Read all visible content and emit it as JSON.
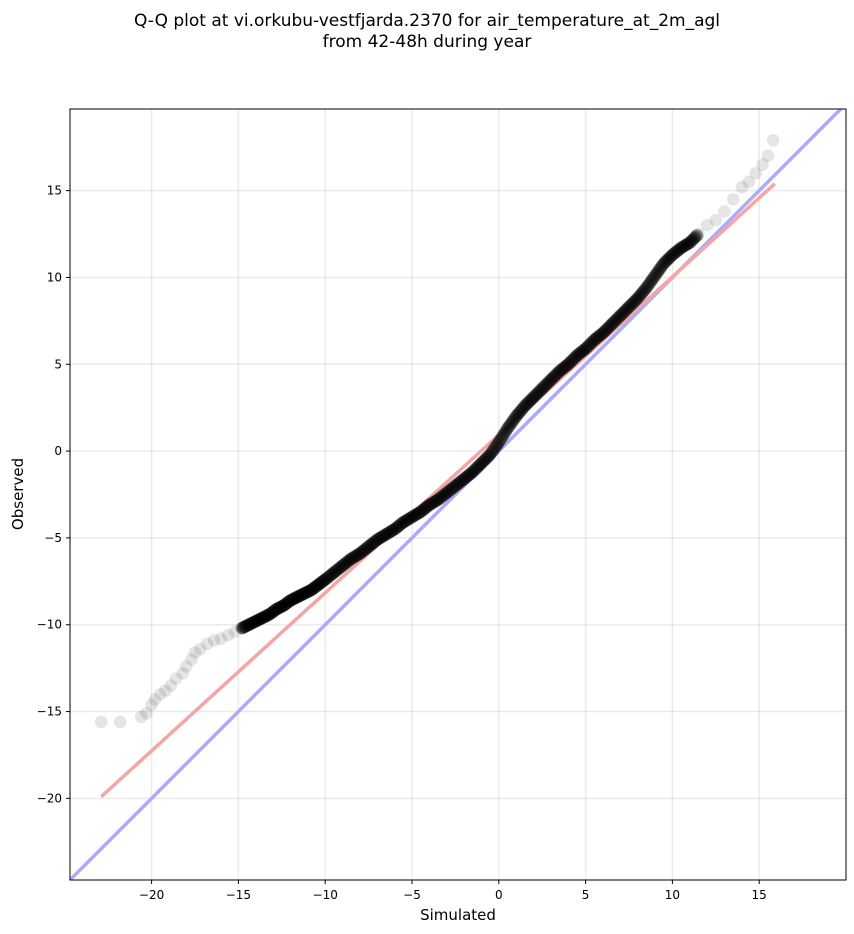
{
  "chart_data": {
    "type": "scatter",
    "title_lines": [
      "Q-Q plot at vi.orkubu-vestfjarda.2370 for air_temperature_at_2m_agl",
      "from 42-48h during year"
    ],
    "xlabel": "Simulated",
    "ylabel": "Observed",
    "xlim": [
      -24.7,
      20.0
    ],
    "ylim": [
      -24.7,
      19.7
    ],
    "xticks": [
      -20,
      -15,
      -10,
      -5,
      0,
      5,
      10,
      15
    ],
    "yticks": [
      -20,
      -15,
      -10,
      -5,
      0,
      5,
      10,
      15
    ],
    "grid": true,
    "reference_line": {
      "name": "1:1",
      "color": "#aaaaff",
      "points": [
        [
          -24.7,
          -24.7
        ],
        [
          20.0,
          20.0
        ]
      ]
    },
    "fit_line": {
      "color": "#f4a6a6",
      "points": [
        [
          -22.9,
          -19.9
        ],
        [
          15.9,
          15.4
        ]
      ]
    },
    "quantiles": {
      "x": [
        -22.9,
        -21.8,
        -20.6,
        -20.3,
        -20.0,
        -19.8,
        -19.5,
        -19.2,
        -18.9,
        -18.6,
        -18.2,
        -18.0,
        -17.7,
        -17.5,
        -17.2,
        -16.8,
        -16.4,
        -16.0,
        -15.6,
        -15.2,
        -14.8,
        -14.4,
        -14.0,
        -13.6,
        -13.2,
        -12.8,
        -12.4,
        -12.0,
        -11.6,
        -11.2,
        -10.8,
        -10.4,
        -10.0,
        -9.5,
        -9.0,
        -8.5,
        -8.0,
        -7.5,
        -7.0,
        -6.5,
        -6.0,
        -5.5,
        -5.0,
        -4.5,
        -4.0,
        -3.5,
        -3.0,
        -2.5,
        -2.0,
        -1.5,
        -1.0,
        -0.5,
        0.0,
        0.5,
        1.0,
        1.5,
        2.0,
        2.5,
        3.0,
        3.5,
        4.0,
        4.5,
        5.0,
        5.5,
        6.0,
        6.5,
        7.0,
        7.5,
        8.0,
        8.5,
        9.0,
        9.5,
        10.0,
        10.5,
        11.0,
        11.5,
        12.0,
        12.5,
        13.0,
        13.5,
        14.0,
        14.4,
        14.8,
        15.2,
        15.5,
        15.8
      ],
      "y": [
        -15.6,
        -15.6,
        -15.3,
        -15.1,
        -14.6,
        -14.3,
        -14.0,
        -13.8,
        -13.5,
        -13.1,
        -12.8,
        -12.4,
        -12.0,
        -11.6,
        -11.4,
        -11.1,
        -10.9,
        -10.8,
        -10.6,
        -10.4,
        -10.2,
        -10.0,
        -9.8,
        -9.6,
        -9.4,
        -9.1,
        -8.9,
        -8.6,
        -8.4,
        -8.2,
        -8.0,
        -7.7,
        -7.4,
        -7.0,
        -6.6,
        -6.2,
        -5.9,
        -5.5,
        -5.1,
        -4.8,
        -4.5,
        -4.1,
        -3.8,
        -3.5,
        -3.1,
        -2.8,
        -2.4,
        -2.0,
        -1.6,
        -1.2,
        -0.7,
        -0.2,
        0.5,
        1.3,
        2.0,
        2.6,
        3.1,
        3.6,
        4.1,
        4.6,
        5.0,
        5.5,
        5.9,
        6.4,
        6.8,
        7.3,
        7.8,
        8.3,
        8.8,
        9.4,
        10.1,
        10.8,
        11.3,
        11.7,
        12.0,
        12.5,
        13.0,
        13.3,
        13.8,
        14.5,
        15.2,
        15.5,
        16.0,
        16.5,
        17.0,
        17.9
      ]
    }
  }
}
